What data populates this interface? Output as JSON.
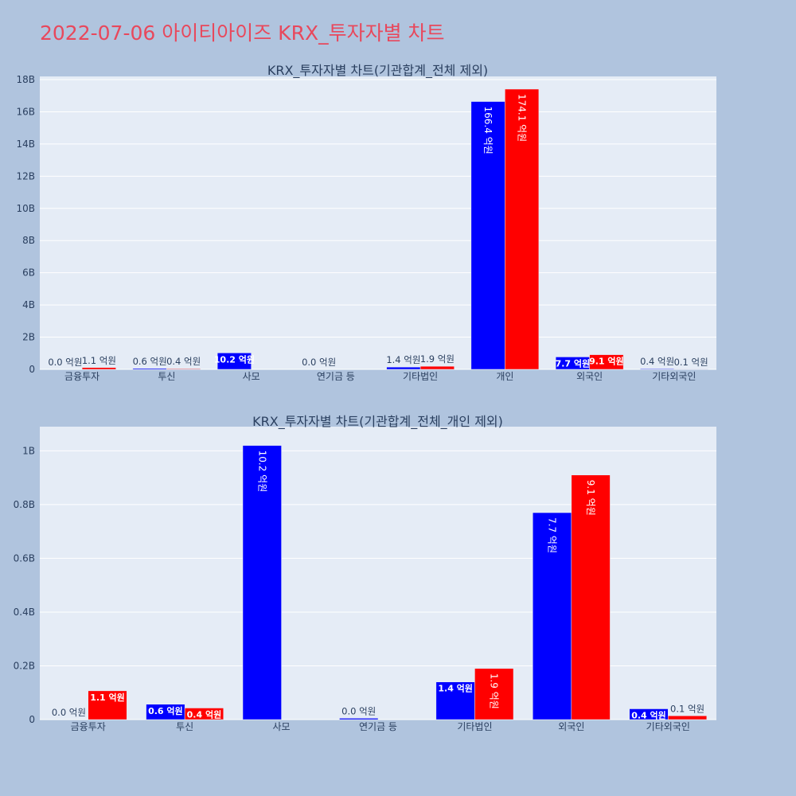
{
  "page_title": "2022-07-06 아이티아이즈 KRX_투자자별 차트",
  "colors": {
    "series_a": "#0000ff",
    "series_b": "#ff0000",
    "title": "#e8485c"
  },
  "chart_data": [
    {
      "type": "bar",
      "title": "KRX_투자자별 차트(기관합계_전체 제외)",
      "categories": [
        "금융투자",
        "투신",
        "사모",
        "연기금 등",
        "기타법인",
        "개인",
        "외국인",
        "기타외국인"
      ],
      "series": [
        {
          "values": [
            0.0,
            0.06,
            1.02,
            0.0,
            0.14,
            16.64,
            0.77,
            0.04
          ],
          "labels": [
            "0.0 억원",
            "0.6 억원",
            "10.2 억원",
            "0.0 억원",
            "1.4 억원",
            "166.4 억원",
            "7.7 억원",
            "0.4 억원"
          ]
        },
        {
          "values": [
            0.11,
            0.04,
            null,
            null,
            0.19,
            17.41,
            0.91,
            0.01
          ],
          "labels": [
            "1.1 억원",
            "0.4 억원",
            null,
            null,
            "1.9 억원",
            "174.1 억원",
            "9.1 억원",
            "0.1 억원"
          ]
        }
      ],
      "ylim": [
        0,
        18.2
      ],
      "yticks": [
        0,
        2,
        4,
        6,
        8,
        10,
        12,
        14,
        16,
        18
      ],
      "ytick_labels": [
        "0",
        "2B",
        "4B",
        "6B",
        "8B",
        "10B",
        "12B",
        "14B",
        "16B",
        "18B"
      ],
      "grid": true
    },
    {
      "type": "bar",
      "title": "KRX_투자자별 차트(기관합계_전체_개인 제외)",
      "categories": [
        "금융투자",
        "투신",
        "사모",
        "연기금 등",
        "기타법인",
        "외국인",
        "기타외국인"
      ],
      "series": [
        {
          "values": [
            0.0,
            0.057,
            1.02,
            0.005,
            0.14,
            0.77,
            0.04
          ],
          "labels": [
            "0.0 억원",
            "0.6 억원",
            "10.2 억원",
            "0.0 억원",
            "1.4 억원",
            "7.7 억원",
            "0.4 억원"
          ]
        },
        {
          "values": [
            0.107,
            0.043,
            null,
            null,
            0.19,
            0.91,
            0.014
          ],
          "labels": [
            "1.1 억원",
            "0.4 억원",
            null,
            null,
            "1.9 억원",
            "9.1 억원",
            "0.1 억원"
          ]
        }
      ],
      "ylim": [
        0,
        1.09
      ],
      "yticks": [
        0,
        0.2,
        0.4,
        0.6,
        0.8,
        1.0
      ],
      "ytick_labels": [
        "0",
        "0.2B",
        "0.4B",
        "0.6B",
        "0.8B",
        "1B"
      ],
      "grid": true
    }
  ]
}
